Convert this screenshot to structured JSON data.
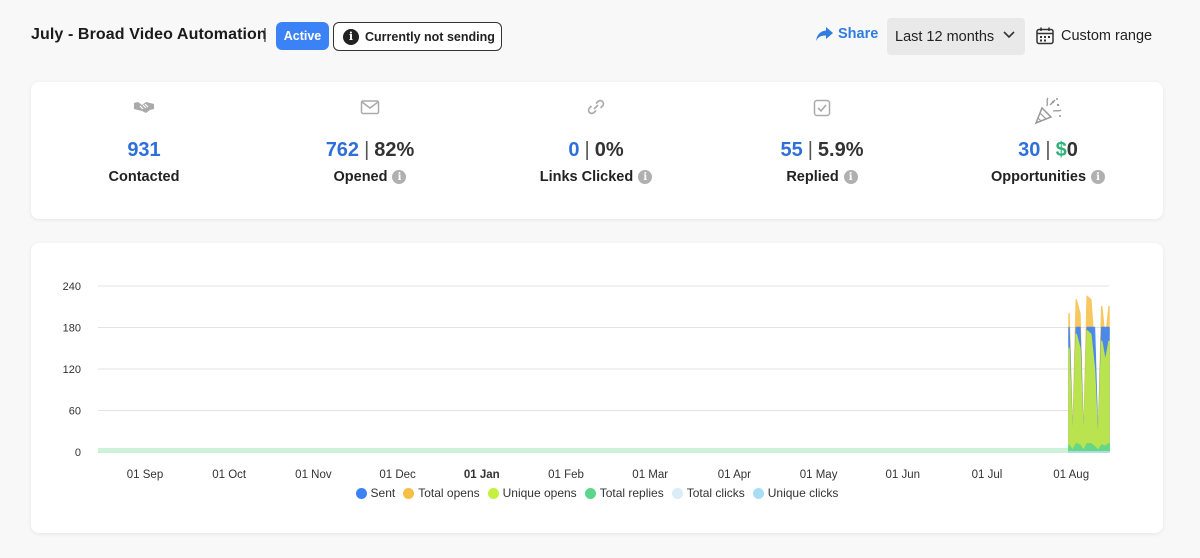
{
  "header": {
    "title": "July - Broad Video Automation",
    "separator": "|",
    "status_badge": "Active",
    "sending_status": "Currently not sending",
    "share_label": "Share",
    "range_value": "Last 12 months",
    "custom_range_label": "Custom range"
  },
  "stats": [
    {
      "icon": "handshake-icon",
      "value": "931",
      "secondary": "",
      "label": "Contacted",
      "info": false
    },
    {
      "icon": "envelope-icon",
      "value": "762",
      "secondary": "82%",
      "label": "Opened",
      "info": true
    },
    {
      "icon": "link-icon",
      "value": "0",
      "secondary": "0%",
      "label": "Links Clicked",
      "info": true
    },
    {
      "icon": "checkbox-icon",
      "value": "55",
      "secondary": "5.9%",
      "label": "Replied",
      "info": true
    },
    {
      "icon": "party-popper-icon",
      "value": "30",
      "secondary_prefix": "$",
      "secondary": "0",
      "label": "Opportunities",
      "info": true
    }
  ],
  "colors": {
    "accent_blue": "#2f6fdb",
    "active_badge": "#3b82f6",
    "money_green": "#2db37a",
    "sent": "#3b82f6",
    "total_opens": "#f6be45",
    "unique_opens": "#c6ef3f",
    "total_replies": "#5cd68b",
    "total_clicks": "#d9ecf7",
    "unique_clicks": "#a9ddf4"
  },
  "chart_data": {
    "type": "area",
    "x": [
      "01 Sep",
      "01 Oct",
      "01 Nov",
      "01 Dec",
      "01 Jan",
      "01 Feb",
      "01 Mar",
      "01 Apr",
      "01 May",
      "01 Jun",
      "01 Jul",
      "01 Aug"
    ],
    "bold_ticks": [
      "01 Jan"
    ],
    "yticks": [
      0,
      60,
      120,
      180,
      240
    ],
    "ylim": [
      0,
      240
    ],
    "grid": true,
    "legend_position": "bottom",
    "series": [
      {
        "name": "Sent",
        "color": "#3b82f6",
        "values_pre_aug": 0,
        "values_aug": [
          180,
          0,
          180,
          180,
          0,
          180,
          180,
          180,
          0,
          180,
          180,
          180
        ]
      },
      {
        "name": "Total opens",
        "color": "#f6be45",
        "values_pre_aug": 0,
        "values_aug": [
          200,
          10,
          220,
          200,
          10,
          225,
          220,
          150,
          10,
          210,
          160,
          210
        ]
      },
      {
        "name": "Unique opens",
        "color": "#c6ef3f",
        "values_pre_aug": 0,
        "values_aug": [
          150,
          5,
          170,
          150,
          5,
          175,
          170,
          120,
          5,
          160,
          130,
          160
        ]
      },
      {
        "name": "Total replies",
        "color": "#5cd68b",
        "values_pre_aug": 0,
        "values_aug": [
          10,
          2,
          12,
          10,
          2,
          12,
          12,
          8,
          2,
          10,
          8,
          12
        ]
      },
      {
        "name": "Total clicks",
        "color": "#d9ecf7",
        "values_pre_aug": 0,
        "values_aug": [
          0,
          0,
          0,
          0,
          0,
          0,
          0,
          0,
          0,
          0,
          0,
          0
        ]
      },
      {
        "name": "Unique clicks",
        "color": "#a9ddf4",
        "values_pre_aug": 0,
        "values_aug": [
          0,
          0,
          0,
          0,
          0,
          0,
          0,
          0,
          0,
          0,
          0,
          0
        ]
      }
    ]
  }
}
